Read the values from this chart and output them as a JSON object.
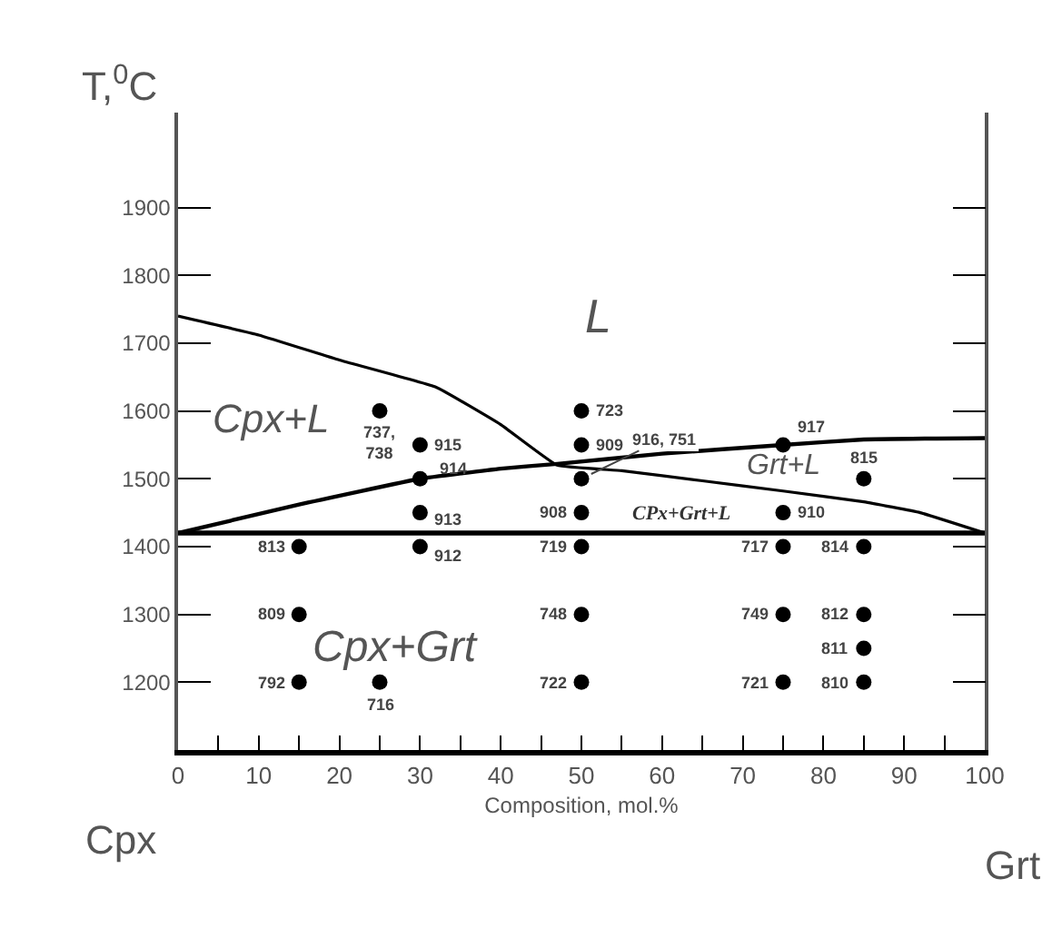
{
  "chart_data": {
    "type": "scatter",
    "xlabel": "Composition, mol.%",
    "ylabel": "T,$^{0}$C",
    "xlim": [
      0,
      100
    ],
    "ylim": [
      1100,
      2040
    ],
    "xticks": [
      0,
      {
        "value": 5,
        "label": null
      },
      10,
      {
        "value": 15,
        "label": null
      },
      20,
      {
        "value": 25,
        "label": null
      },
      30,
      {
        "value": 35,
        "label": null
      },
      40,
      {
        "value": 45,
        "label": null
      },
      50,
      {
        "value": 55,
        "label": null
      },
      60,
      {
        "value": 65,
        "label": null
      },
      70,
      {
        "value": 75,
        "label": null
      },
      80,
      {
        "value": 85,
        "label": null
      },
      90,
      {
        "value": 95,
        "label": null
      },
      100
    ],
    "yticks": [
      1200,
      1300,
      1400,
      1500,
      1600,
      1700,
      1800,
      1900
    ],
    "series": [
      {
        "type": "line",
        "color": "#000000",
        "marker": "none",
        "x": [
          0,
          10,
          20,
          32,
          40,
          47,
          55,
          65,
          75,
          85,
          92,
          100
        ],
        "values": [
          1740,
          1712,
          1675,
          1635,
          1580,
          1520,
          1512,
          1497,
          1482,
          1466,
          1450,
          1420
        ]
      },
      {
        "type": "line",
        "color": "#000000",
        "marker": "none",
        "x": [
          0,
          15,
          30,
          40,
          47,
          60,
          75,
          85,
          100
        ],
        "values": [
          1420,
          1462,
          1500,
          1515,
          1522,
          1537,
          1550,
          1558,
          1560
        ]
      },
      {
        "type": "line",
        "color": "#000000",
        "marker": "none",
        "x": [
          0,
          100
        ],
        "values": [
          1420,
          1420
        ]
      },
      {
        "color": "#000000",
        "marker": "circle",
        "x": [
          15,
          15,
          15,
          50,
          50,
          50,
          50,
          75,
          75,
          75,
          85,
          85,
          85,
          85,
          30,
          30,
          30,
          50,
          50,
          75,
          25,
          25,
          30,
          50,
          75,
          85
        ],
        "values": [
          1400,
          1300,
          1200,
          1450,
          1400,
          1300,
          1200,
          1400,
          1300,
          1200,
          1400,
          1300,
          1250,
          1200,
          1550,
          1450,
          1400,
          1600,
          1550,
          1450,
          1600,
          1200,
          1500,
          1500,
          1550,
          1500
        ]
      }
    ],
    "annotations": [
      "Cpx",
      "Grt",
      "L",
      "Cpx+L",
      "Grt+L",
      "CPx+Grt+L",
      "Cpx+Grt",
      {
        "text": "813",
        "x": 15,
        "y": 1400
      },
      {
        "text": "809",
        "x": 15,
        "y": 1300
      },
      {
        "text": "792",
        "x": 15,
        "y": 1200
      },
      {
        "text": "908",
        "x": 50,
        "y": 1450
      },
      {
        "text": "719",
        "x": 50,
        "y": 1400
      },
      {
        "text": "748",
        "x": 50,
        "y": 1300
      },
      {
        "text": "722",
        "x": 50,
        "y": 1200
      },
      {
        "text": "717",
        "x": 75,
        "y": 1400
      },
      {
        "text": "749",
        "x": 75,
        "y": 1300
      },
      {
        "text": "721",
        "x": 75,
        "y": 1200
      },
      {
        "text": "814",
        "x": 85,
        "y": 1400
      },
      {
        "text": "812",
        "x": 85,
        "y": 1300
      },
      {
        "text": "811",
        "x": 85,
        "y": 1250
      },
      {
        "text": "810",
        "x": 85,
        "y": 1200
      },
      {
        "text": "915",
        "x": 30,
        "y": 1550
      },
      {
        "text": "913",
        "x": 30,
        "y": 1450
      },
      {
        "text": "912",
        "x": 30,
        "y": 1400
      },
      {
        "text": "723",
        "x": 50,
        "y": 1600
      },
      {
        "text": "909",
        "x": 50,
        "y": 1550
      },
      {
        "text": "910",
        "x": 75,
        "y": 1450
      },
      {
        "text": "737,\n738",
        "x": 25,
        "y": 1600
      },
      {
        "text": "716",
        "x": 25,
        "y": 1200
      },
      {
        "text": "914",
        "x": 30,
        "y": 1500
      },
      {
        "text": "916, 751",
        "x": 50,
        "y": 1500
      },
      {
        "text": "917",
        "x": 75,
        "y": 1550
      },
      {
        "text": "815",
        "x": 85,
        "y": 1500
      }
    ]
  }
}
